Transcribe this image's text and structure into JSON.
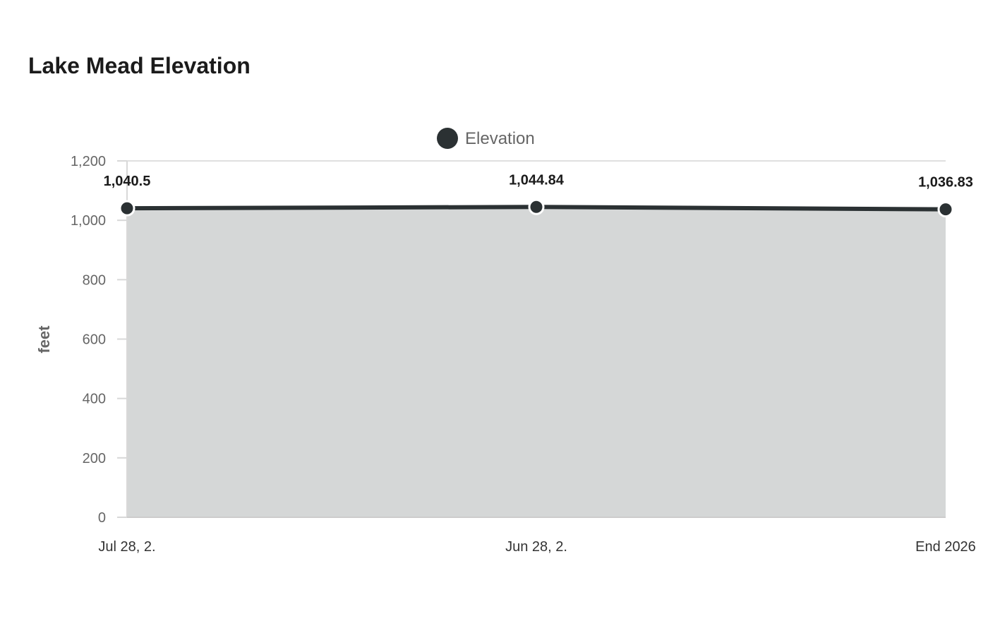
{
  "chart_data": {
    "type": "area",
    "title": "Lake Mead Elevation",
    "xlabel": "",
    "ylabel": "feet",
    "categories": [
      "Jul 28, 2.",
      "Jun 28, 2.",
      "End 2026"
    ],
    "series": [
      {
        "name": "Elevation",
        "values": [
          1040.5,
          1044.84,
          1036.83
        ],
        "data_labels": [
          "1,040.5",
          "1,044.84",
          "1,036.83"
        ],
        "color": "#2b3133",
        "fill_color": "#d5d7d7"
      }
    ],
    "ylim": [
      0,
      1200
    ],
    "y_ticks": [
      0,
      200,
      400,
      600,
      800,
      1000,
      1200
    ],
    "y_tick_labels": [
      "0",
      "200",
      "400",
      "600",
      "800",
      "1,000",
      "1,200"
    ],
    "grid": true,
    "legend": "top-center"
  }
}
